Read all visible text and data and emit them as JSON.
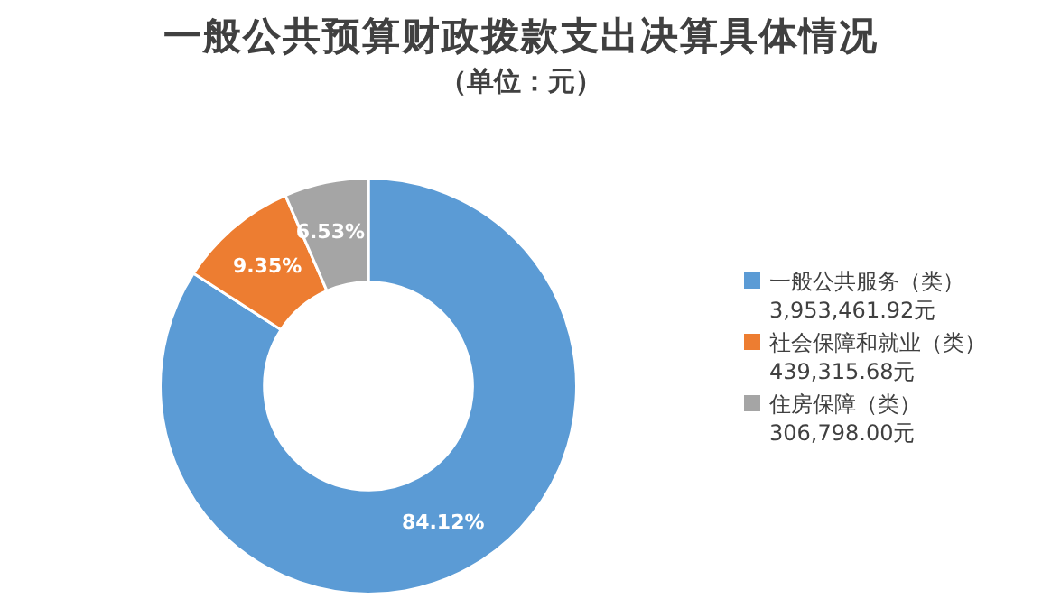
{
  "chart_data": {
    "type": "donut",
    "title": "一般公共预算财政拨款支出决算具体情况",
    "subtitle": "（单位：元）",
    "categories": [
      "一般公共服务（类）\n3,953,461.92元",
      "社会保障和就业（类）\n439,315.68元",
      "住房保障（类）\n306,798.00元"
    ],
    "values": [
      84.12,
      9.35,
      6.53
    ],
    "colors": [
      "#5b9bd5",
      "#ed7d31",
      "#a5a5a5"
    ],
    "value_labels": [
      "84.12%",
      "9.35%",
      "6.53%"
    ],
    "legend": "right"
  }
}
